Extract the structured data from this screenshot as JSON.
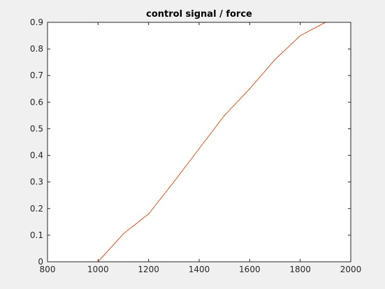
{
  "chart_data": {
    "type": "line",
    "title": "control signal / force",
    "xlabel": "",
    "ylabel": "",
    "xlim": [
      800,
      2000
    ],
    "ylim": [
      0,
      0.9
    ],
    "xticks": [
      800,
      1000,
      1200,
      1400,
      1600,
      1800,
      2000
    ],
    "yticks": [
      0,
      0.1,
      0.2,
      0.3,
      0.4,
      0.5,
      0.6,
      0.7,
      0.8,
      0.9
    ],
    "xtick_labels": [
      "800",
      "1000",
      "1200",
      "1400",
      "1600",
      "1800",
      "2000"
    ],
    "ytick_labels": [
      "0",
      "0.1",
      "0.2",
      "0.3",
      "0.4",
      "0.5",
      "0.6",
      "0.7",
      "0.8",
      "0.9"
    ],
    "grid": false,
    "series": [
      {
        "color": "#d95319",
        "x": [
          1000,
          1100,
          1200,
          1300,
          1400,
          1500,
          1600,
          1700,
          1800,
          1900
        ],
        "y": [
          0,
          0.105,
          0.18,
          0.3,
          0.425,
          0.55,
          0.65,
          0.76,
          0.85,
          0.9
        ]
      }
    ]
  },
  "colors": {
    "background": "#f0f0f0",
    "axes_background": "#ffffff",
    "axis_line": "#262626",
    "series_line": "#d95319"
  }
}
